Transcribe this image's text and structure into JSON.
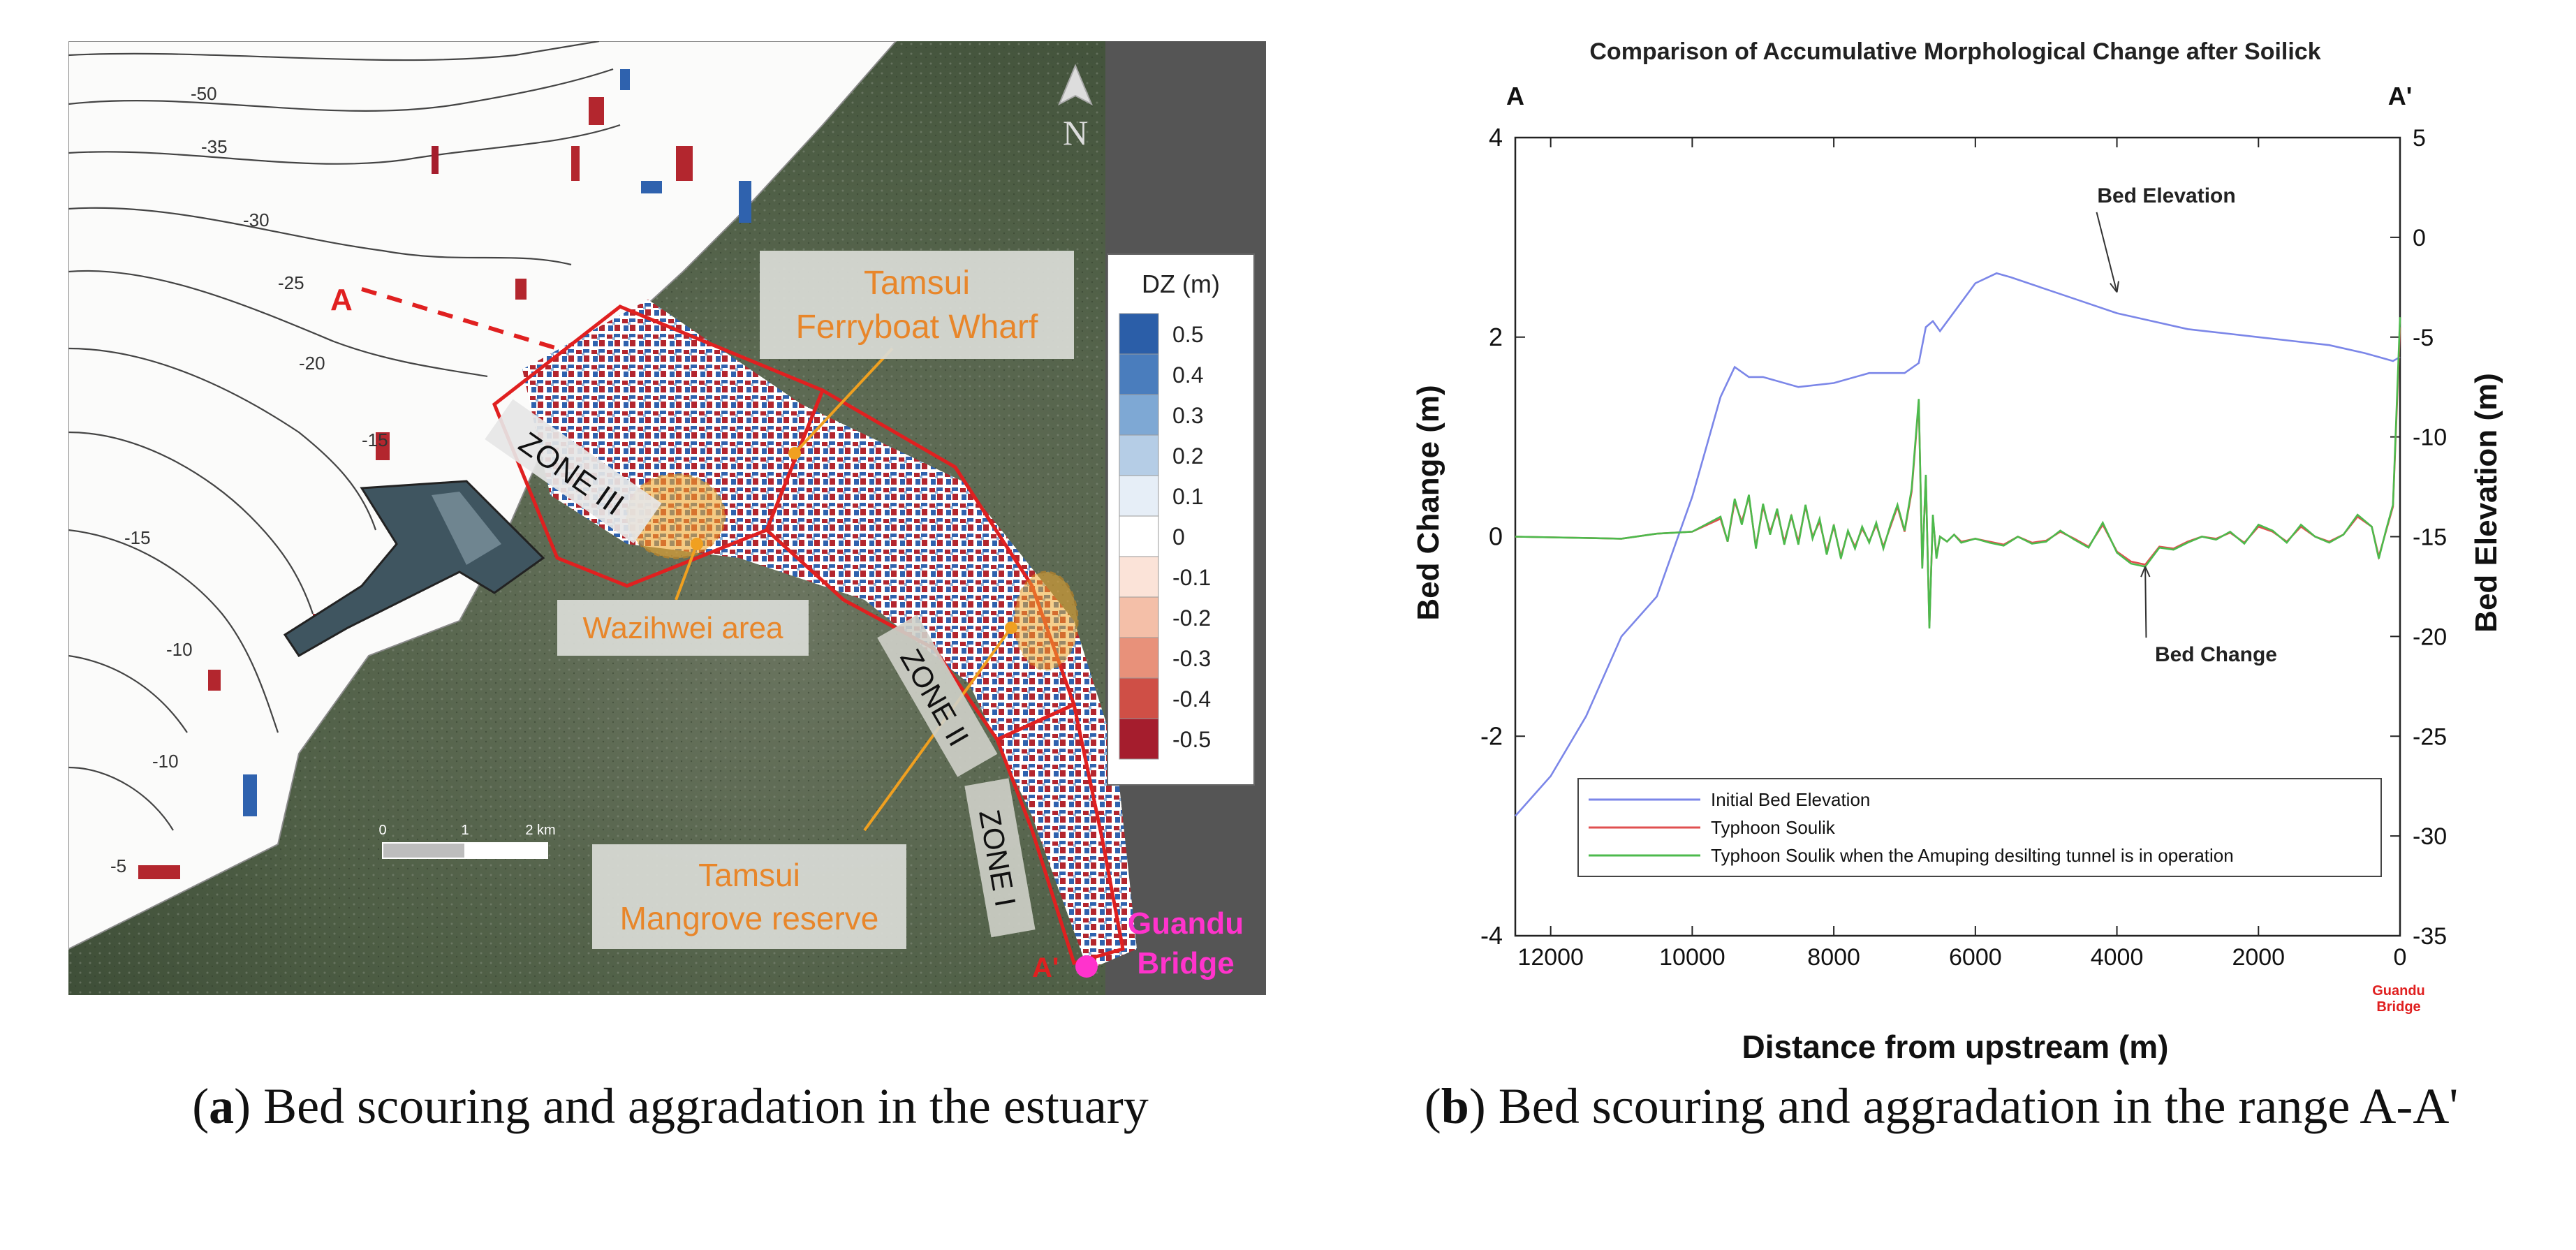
{
  "captions": {
    "a_letter": "a",
    "a_text": " Bed scouring and aggradation in the estuary",
    "b_letter": "b",
    "b_text": " Bed scouring and aggradation in the range A-A'"
  },
  "map": {
    "north_label": "N",
    "section_start": "A",
    "section_end": "A'",
    "zones": [
      "ZONE III",
      "ZONE II",
      "ZONE I"
    ],
    "callouts": {
      "wharf_line1": "Tamsui",
      "wharf_line2": "Ferryboat Wharf",
      "wazihwei": "Wazihwei area",
      "mangrove_line1": "Tamsui",
      "mangrove_line2": "Mangrove reserve"
    },
    "bridge_line1": "Guandu",
    "bridge_line2": "Bridge",
    "scale_labels": [
      "0",
      "1",
      "2 km"
    ],
    "contour_labels": [
      "-50",
      "-35",
      "-30",
      "-25",
      "-20",
      "-15",
      "-15",
      "-10",
      "-10",
      "-5"
    ],
    "colorbar": {
      "title": "DZ (m)",
      "ticks": [
        "0.5",
        "0.4",
        "0.3",
        "0.2",
        "0.1",
        "0",
        "-0.1",
        "-0.2",
        "-0.3",
        "-0.4",
        "-0.5"
      ],
      "colors": [
        "#2b5ea8",
        "#4a7dbd",
        "#7ea8d4",
        "#b5cde6",
        "#e6eef7",
        "#ffffff",
        "#fbe3d8",
        "#f4bfa8",
        "#e8917a",
        "#cf4f46",
        "#a51d2d"
      ]
    },
    "colors": {
      "callout_text": "#e8862a",
      "bridge_text": "#ff33cc",
      "section_line": "#e02020",
      "zone_outline": "#e02020"
    }
  },
  "chart_data": {
    "type": "line",
    "title": "Comparison of Accumulative Morphological Change after Soilick",
    "left_marker": "A",
    "right_marker": "A'",
    "xlabel": "Distance from upstream (m)",
    "xlabel_note_line1": "Guandu",
    "xlabel_note_line2": "Bridge",
    "ylabel_left": "Bed Change (m)",
    "ylabel_right": "Bed Elevation (m)",
    "xlim": [
      12500,
      0
    ],
    "ylim_left": [
      -4,
      4
    ],
    "ylim_right": [
      -35,
      5
    ],
    "xticks": [
      12000,
      10000,
      8000,
      6000,
      4000,
      2000,
      0
    ],
    "yticks_left": [
      -4,
      -2,
      0,
      2,
      4
    ],
    "yticks_right": [
      -35,
      -30,
      -25,
      -20,
      -15,
      -10,
      -5,
      0,
      5
    ],
    "annotations": [
      {
        "text": "Bed Elevation",
        "x": 3300,
        "y_left": 3.35,
        "arrow_x": 4000,
        "arrow_y_left": 2.45
      },
      {
        "text": "Bed Change",
        "x": 2600,
        "y_left": -1.25,
        "arrow_x": 3600,
        "arrow_y_left": -0.3
      }
    ],
    "series": [
      {
        "name": "Initial Bed Elevation",
        "axis": "right",
        "color": "#7b86e8",
        "x": [
          12500,
          12000,
          11500,
          11000,
          10500,
          10000,
          9800,
          9600,
          9400,
          9200,
          9000,
          8500,
          8000,
          7500,
          7000,
          6800,
          6700,
          6600,
          6500,
          6000,
          5700,
          5500,
          5000,
          4500,
          4000,
          3500,
          3000,
          2500,
          2000,
          1500,
          1000,
          500,
          300,
          100,
          0
        ],
        "y": [
          -29,
          -27,
          -24,
          -20,
          -18,
          -13,
          -10.5,
          -8,
          -6.5,
          -7,
          -7,
          -7.5,
          -7.3,
          -6.8,
          -6.8,
          -6.3,
          -4.5,
          -4.2,
          -4.7,
          -2.3,
          -1.8,
          -2,
          -2.6,
          -3.2,
          -3.8,
          -4.2,
          -4.6,
          -4.8,
          -5,
          -5.2,
          -5.4,
          -5.8,
          -6,
          -6.2,
          -6
        ]
      },
      {
        "name": "Typhoon Soulik",
        "axis": "left",
        "color": "#e05050",
        "x": [
          12500,
          11000,
          10500,
          10000,
          9600,
          9500,
          9400,
          9300,
          9200,
          9100,
          9000,
          8900,
          8800,
          8700,
          8600,
          8500,
          8400,
          8300,
          8200,
          8100,
          8000,
          7900,
          7800,
          7700,
          7600,
          7500,
          7400,
          7300,
          7200,
          7100,
          7000,
          6900,
          6800,
          6750,
          6700,
          6650,
          6600,
          6550,
          6500,
          6400,
          6300,
          6200,
          6000,
          5800,
          5600,
          5400,
          5200,
          5000,
          4800,
          4600,
          4400,
          4200,
          4000,
          3800,
          3600,
          3400,
          3200,
          3000,
          2800,
          2600,
          2400,
          2200,
          2000,
          1800,
          1600,
          1400,
          1200,
          1000,
          800,
          600,
          400,
          300,
          200,
          100,
          0
        ],
        "y": [
          0,
          -0.02,
          0.03,
          0.05,
          0.18,
          -0.05,
          0.35,
          0.15,
          0.4,
          -0.1,
          0.3,
          0.05,
          0.25,
          -0.05,
          0.2,
          -0.05,
          0.3,
          0.0,
          0.15,
          -0.15,
          0.1,
          -0.2,
          0.05,
          -0.1,
          0.08,
          -0.05,
          0.12,
          -0.1,
          0.1,
          0.3,
          0.05,
          0.45,
          1.35,
          -0.3,
          0.6,
          -0.9,
          0.2,
          -0.2,
          0.0,
          -0.05,
          0.02,
          -0.05,
          -0.02,
          -0.05,
          -0.08,
          0.0,
          -0.06,
          -0.04,
          0.05,
          -0.02,
          -0.1,
          0.12,
          -0.15,
          -0.25,
          -0.28,
          -0.1,
          -0.12,
          -0.05,
          0.0,
          -0.02,
          0.04,
          -0.06,
          0.1,
          0.05,
          -0.05,
          0.1,
          0.0,
          -0.05,
          0.02,
          0.2,
          0.1,
          -0.2,
          0.05,
          0.3,
          2.1
        ]
      },
      {
        "name": "Typhoon Soulik when the Amuping desilting tunnel is in operation",
        "axis": "left",
        "color": "#4cba4c",
        "x": [
          12500,
          11000,
          10500,
          10000,
          9600,
          9500,
          9400,
          9300,
          9200,
          9100,
          9000,
          8900,
          8800,
          8700,
          8600,
          8500,
          8400,
          8300,
          8200,
          8100,
          8000,
          7900,
          7800,
          7700,
          7600,
          7500,
          7400,
          7300,
          7200,
          7100,
          7000,
          6900,
          6800,
          6750,
          6700,
          6650,
          6600,
          6550,
          6500,
          6400,
          6300,
          6200,
          6000,
          5800,
          5600,
          5400,
          5200,
          5000,
          4800,
          4600,
          4400,
          4200,
          4000,
          3800,
          3600,
          3400,
          3200,
          3000,
          2800,
          2600,
          2400,
          2200,
          2000,
          1800,
          1600,
          1400,
          1200,
          1000,
          800,
          600,
          400,
          300,
          200,
          100,
          0
        ],
        "y": [
          0,
          -0.02,
          0.03,
          0.05,
          0.2,
          -0.05,
          0.38,
          0.12,
          0.42,
          -0.12,
          0.33,
          0.02,
          0.28,
          -0.08,
          0.22,
          -0.08,
          0.32,
          -0.02,
          0.18,
          -0.18,
          0.12,
          -0.22,
          0.06,
          -0.12,
          0.1,
          -0.06,
          0.14,
          -0.12,
          0.12,
          0.32,
          0.06,
          0.48,
          1.38,
          -0.32,
          0.62,
          -0.92,
          0.22,
          -0.22,
          0.0,
          -0.05,
          0.02,
          -0.06,
          -0.02,
          -0.06,
          -0.09,
          0.0,
          -0.07,
          -0.05,
          0.06,
          -0.03,
          -0.11,
          0.14,
          -0.16,
          -0.27,
          -0.3,
          -0.11,
          -0.13,
          -0.06,
          0.0,
          -0.03,
          0.05,
          -0.07,
          0.12,
          0.06,
          -0.06,
          0.12,
          0.0,
          -0.06,
          0.02,
          0.22,
          0.1,
          -0.22,
          0.06,
          0.32,
          2.2
        ]
      }
    ],
    "legend": {
      "placement": "bottom-center"
    }
  }
}
